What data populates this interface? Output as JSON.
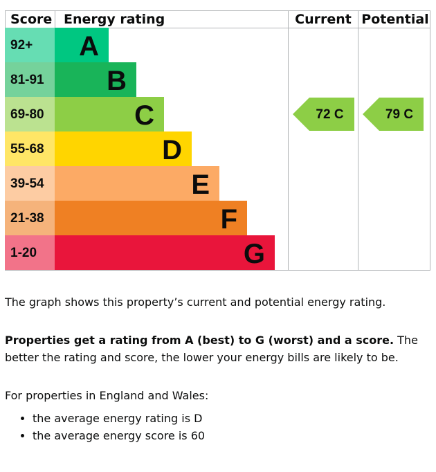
{
  "chart_data": {
    "type": "bar",
    "headers": {
      "score": "Score",
      "rating": "Energy rating",
      "current": "Current",
      "potential": "Potential"
    },
    "bands": [
      {
        "score": "92+",
        "letter": "A",
        "color": "#00c781"
      },
      {
        "score": "81-91",
        "letter": "B",
        "color": "#19b459"
      },
      {
        "score": "69-80",
        "letter": "C",
        "color": "#8dce46"
      },
      {
        "score": "55-68",
        "letter": "D",
        "color": "#ffd500"
      },
      {
        "score": "39-54",
        "letter": "E",
        "color": "#fcaa65"
      },
      {
        "score": "21-38",
        "letter": "F",
        "color": "#ef8023"
      },
      {
        "score": "1-20",
        "letter": "G",
        "color": "#e9153b"
      }
    ],
    "current": {
      "score": 72,
      "letter": "C",
      "label": "72  C",
      "color": "#8dce46"
    },
    "potential": {
      "score": 79,
      "letter": "C",
      "label": "79  C",
      "color": "#8dce46"
    }
  },
  "text": {
    "intro": "The graph shows this property’s current and potential energy rating.",
    "summary_bold": "Properties get a rating from A (best) to G (worst) and a score.",
    "summary_rest": " The better the rating and score, the lower your energy bills are likely to be.",
    "region": "For properties in England and Wales:",
    "bullets": [
      "the average energy rating is D",
      "the average energy score is 60"
    ]
  }
}
